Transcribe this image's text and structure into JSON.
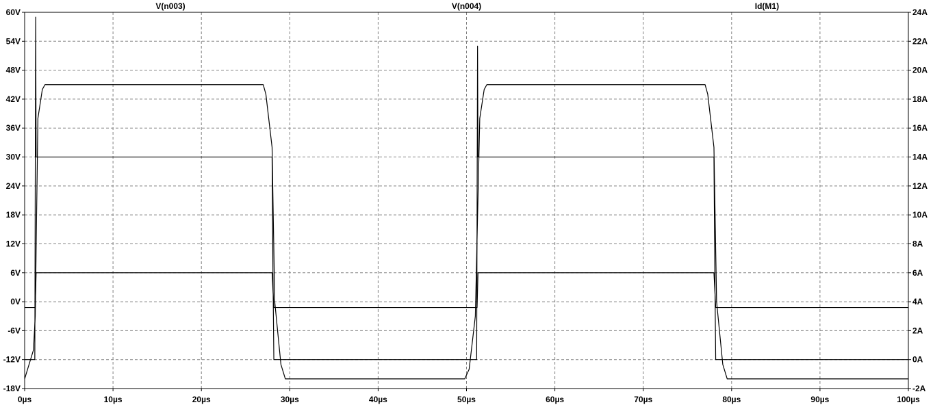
{
  "chart_data": {
    "type": "line",
    "titles": [
      "V(n003)",
      "V(n004)",
      "Id(M1)"
    ],
    "x_ticks": [
      "0µs",
      "10µs",
      "20µs",
      "30µs",
      "40µs",
      "50µs",
      "60µs",
      "70µs",
      "80µs",
      "90µs",
      "100µs"
    ],
    "xlim": [
      0,
      100
    ],
    "y_left_ticks": [
      "60V",
      "54V",
      "48V",
      "42V",
      "36V",
      "30V",
      "24V",
      "18V",
      "12V",
      "6V",
      "0V",
      "-6V",
      "-12V",
      "-18V"
    ],
    "ylim_left": [
      -18,
      60
    ],
    "y_right_ticks": [
      "24A",
      "22A",
      "20A",
      "18A",
      "16A",
      "14A",
      "12A",
      "10A",
      "8A",
      "6A",
      "4A",
      "2A",
      "0A",
      "-2A"
    ],
    "ylim_right": [
      -2,
      24
    ],
    "grid": true,
    "series": [
      {
        "name": "V(n003)",
        "axis": "left",
        "x": [
          0,
          1.0,
          1.2,
          1.5,
          2.0,
          2.3,
          27.0,
          27.3,
          28.0,
          28.3,
          29.0,
          29.5,
          49.8,
          50.3,
          51.0,
          51.5,
          52.0,
          52.3,
          77.0,
          77.3,
          78.0,
          78.3,
          79.0,
          79.5,
          100
        ],
        "y": [
          -16,
          -10,
          -3,
          38,
          44,
          45,
          45,
          43,
          32,
          0,
          -13,
          -16,
          -16,
          -14,
          -3,
          38,
          44,
          45,
          45,
          43,
          32,
          0,
          -13,
          -16,
          -16
        ]
      },
      {
        "name": "V(n004)",
        "axis": "left",
        "x": [
          0,
          1.15,
          1.25,
          1.3,
          28.0,
          28.1,
          28.2,
          100
        ],
        "y": [
          -12,
          -12,
          59,
          30,
          30,
          6,
          -12,
          -12
        ]
      },
      {
        "name": "Id(M1)",
        "axis": "right",
        "x": [
          0,
          1.2,
          1.3,
          28.0,
          28.2,
          51.2,
          51.3,
          78.0,
          78.2,
          100
        ],
        "y": [
          3.6,
          3.6,
          6.0,
          6.0,
          3.6,
          3.6,
          6.0,
          6.0,
          3.6,
          3.6
        ]
      }
    ]
  }
}
